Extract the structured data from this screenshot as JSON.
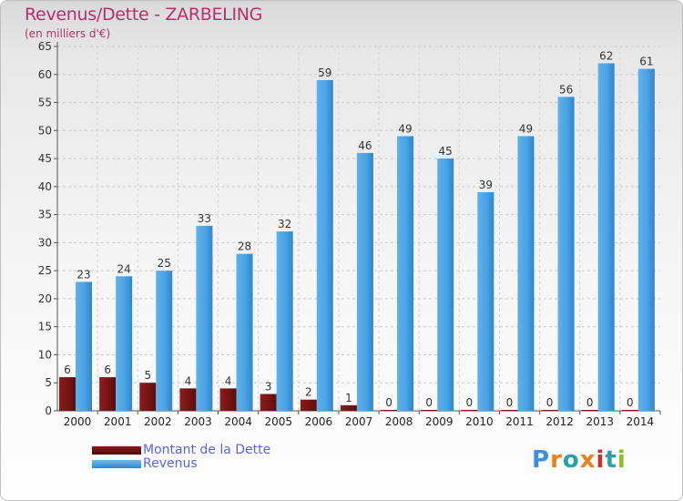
{
  "chart_data": {
    "type": "bar",
    "title": "Revenus/Dette - ZARBELING",
    "subtitle": "(en milliers d'€)",
    "categories": [
      "2000",
      "2001",
      "2002",
      "2003",
      "2004",
      "2005",
      "2006",
      "2007",
      "2008",
      "2009",
      "2010",
      "2011",
      "2012",
      "2013",
      "2014"
    ],
    "series": [
      {
        "name": "Montant de la Dette",
        "color": "#7a1212",
        "values": [
          6,
          6,
          5,
          4,
          4,
          3,
          2,
          1,
          0,
          0,
          0,
          0,
          0,
          0,
          0
        ]
      },
      {
        "name": "Revenus",
        "color": "#3a96dc",
        "values": [
          23,
          24,
          25,
          33,
          28,
          32,
          59,
          46,
          49,
          45,
          39,
          49,
          56,
          62,
          61
        ]
      }
    ],
    "ylim": [
      0,
      65
    ],
    "yticks": [
      0,
      5,
      10,
      15,
      20,
      25,
      30,
      35,
      40,
      45,
      50,
      55,
      60,
      65
    ],
    "grid": true,
    "xlabel": "",
    "ylabel": ""
  },
  "legend": {
    "items": [
      {
        "label": "Montant de la Dette",
        "color": "#6b0f0f"
      },
      {
        "label": "Revenus",
        "color": "#3a96dc"
      }
    ]
  },
  "logo": {
    "text": "Proxiti"
  }
}
